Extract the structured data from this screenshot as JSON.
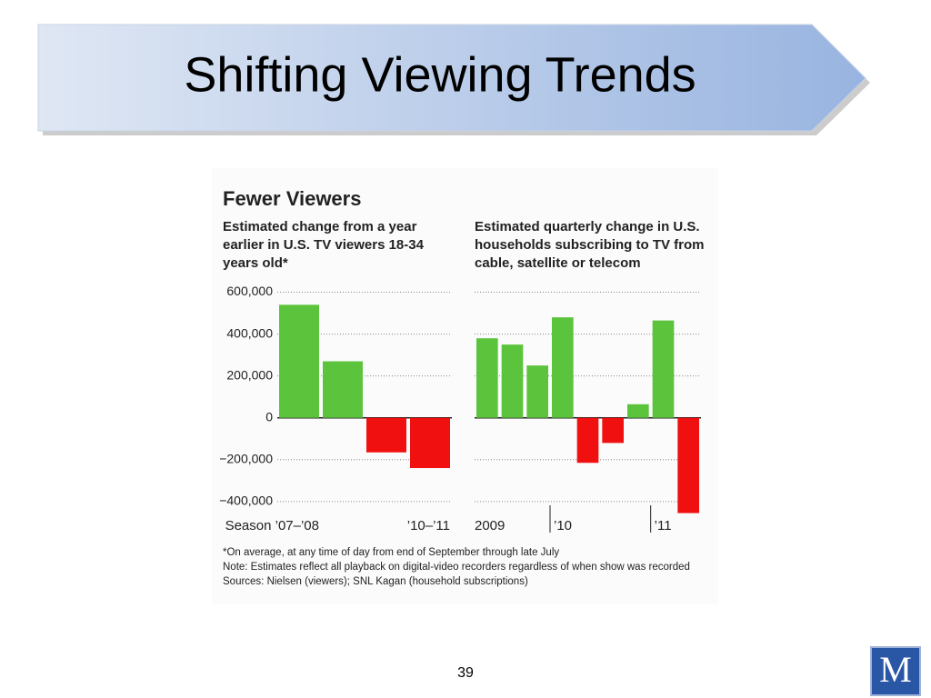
{
  "slide": {
    "title": "Shifting Viewing Trends",
    "page_number": "39",
    "logo": "M"
  },
  "graphic": {
    "title": "Fewer Viewers",
    "notes": [
      "*On average, at any time of day from end of September through late July",
      "Note: Estimates reflect all playback on digital-video recorders regardless of when show was recorded",
      "Sources: Nielsen (viewers); SNL Kagan (household subscriptions)"
    ]
  },
  "chart_data": [
    {
      "type": "bar",
      "title": "Estimated change from a year earlier in U.S. TV viewers 18-34 years old*",
      "categories": [
        "Season ’07–’08",
        null,
        null,
        "’10–’11"
      ],
      "values": [
        540000,
        270000,
        -165000,
        -240000
      ],
      "positive_color": "#5cc43c",
      "negative_color": "#f01010",
      "ylim": [
        -470000,
        650000
      ],
      "yticks": [
        {
          "value": 600000,
          "label": "600,000"
        },
        {
          "value": 400000,
          "label": "400,000"
        },
        {
          "value": 200000,
          "label": "200,000"
        },
        0,
        {
          "value": -200000,
          "label": "−200,000"
        },
        {
          "value": -400000,
          "label": "−400,000"
        }
      ],
      "grid": true
    },
    {
      "type": "bar",
      "title": "Estimated quarterly change in U.S. households subscribing to TV from cable, satellite or telecom",
      "categories": [
        "2009",
        null,
        null,
        "’10",
        null,
        null,
        null,
        "’11",
        null
      ],
      "values": [
        380000,
        350000,
        250000,
        480000,
        -215000,
        -120000,
        65000,
        465000,
        -455000
      ],
      "positive_color": "#5cc43c",
      "negative_color": "#f01010",
      "ylim": [
        -470000,
        650000
      ],
      "grid": true
    }
  ]
}
